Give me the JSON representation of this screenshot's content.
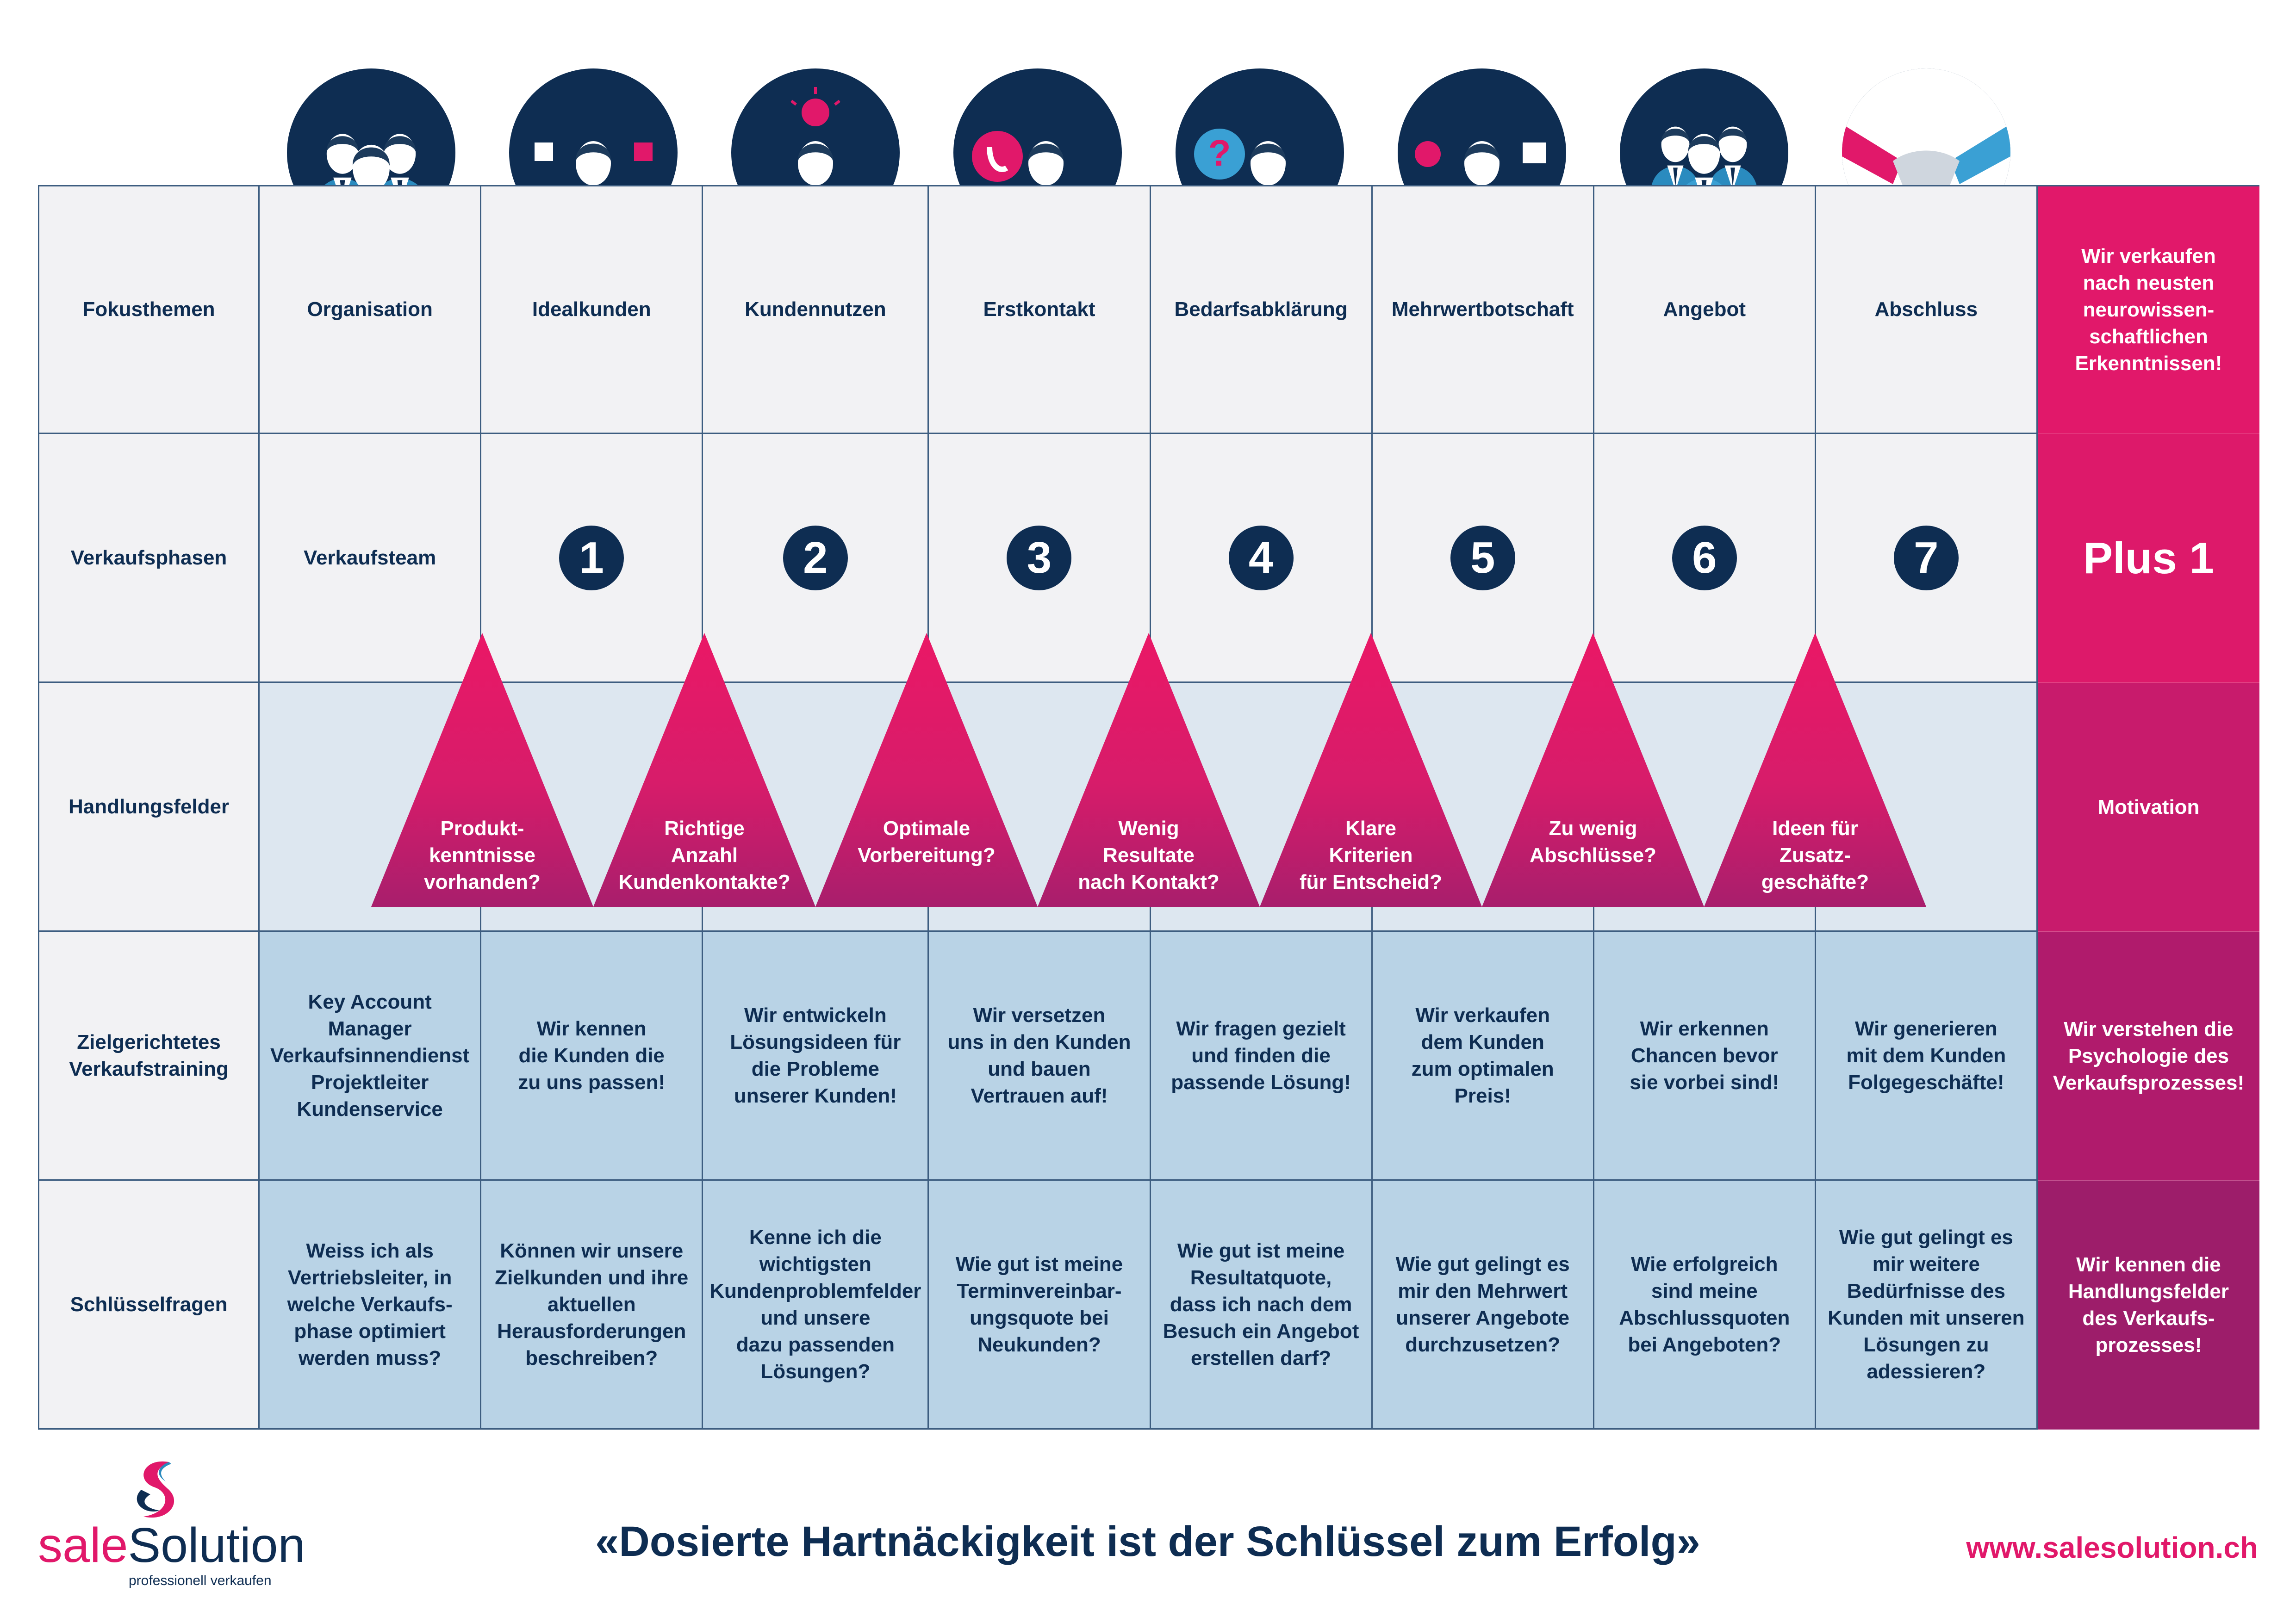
{
  "rows": [
    {
      "label": "Fokusthemen",
      "cells": [
        "Organisation",
        "Idealkunden",
        "Kundennutzen",
        "Erstkontakt",
        "Bedarfsabklärung",
        "Mehrwertbotschaft",
        "Angebot",
        "Abschluss"
      ],
      "plus": "Wir verkaufen\nnach neusten\nneurowissen-\nschaftlichen\nErkenntnissen!"
    },
    {
      "label": "Verkaufsphasen",
      "cells": [
        "Verkaufsteam",
        "1",
        "2",
        "3",
        "4",
        "5",
        "6",
        "7"
      ],
      "plus": "Plus 1"
    },
    {
      "label": "Handlungsfelder",
      "cells": [
        "",
        "",
        "",
        "",
        "",
        "",
        "",
        ""
      ],
      "plus": "Motivation"
    },
    {
      "label": "Zielgerichtetes\nVerkaufstraining",
      "cells": [
        "Key Account Manager\nVerkaufsinnendienst\nProjektleiter\nKundenservice",
        "Wir kennen\ndie Kunden die\nzu uns passen!",
        "Wir entwickeln\nLösungsideen für\ndie Probleme\nunserer Kunden!",
        "Wir versetzen\nuns in den Kunden\nund bauen\nVertrauen auf!",
        "Wir fragen gezielt\nund finden die\npassende Lösung!",
        "Wir verkaufen\ndem Kunden\nzum optimalen\nPreis!",
        "Wir erkennen\nChancen bevor\nsie vorbei sind!",
        "Wir generieren\nmit dem Kunden\nFolgegeschäfte!"
      ],
      "plus": "Wir verstehen die\nPsychologie des\nVerkaufsprozesses!"
    },
    {
      "label": "Schlüsselfragen",
      "cells": [
        "Weiss ich als\nVertriebsleiter, in\nwelche Verkaufs-\nphase optimiert\nwerden muss?",
        "Können wir unsere\nZielkunden und ihre\naktuellen\nHerausforderungen\nbeschreiben?",
        "Kenne ich die\nwichtigsten\nKundenproblemfelder\nund unsere\ndazu passenden\nLösungen?",
        "Wie gut ist meine\nTerminvereinbar-\nungsquote bei\nNeukunden?",
        "Wie gut ist meine\nResultatquote,\ndass ich nach dem\nBesuch ein Angebot\nerstellen darf?",
        "Wie gut gelingt es\nmir den Mehrwert\nunserer Angebote\ndurchzusetzen?",
        "Wie erfolgreich\nsind meine\nAbschlussquoten\nbei Angeboten?",
        "Wie gut gelingt es\nmir weitere\nBedürfnisse des\nKunden mit unseren\nLösungen zu\nadessieren?"
      ],
      "plus": "Wir kennen die\nHandlungsfelder\ndes Verkaufs-\nprozesses!"
    }
  ],
  "triangles": [
    "Produkt-\nkenntnisse\nvorhanden?",
    "Richtige\nAnzahl\nKundenkontakte?",
    "Optimale\nVorbereitung?",
    "Wenig\nResultate\nnach Kontakt?",
    "Klare\nKriterien\nfür Entscheid?",
    "Zu wenig\nAbschlüsse?",
    "Ideen für\nZusatz-\ngeschäfte?"
  ],
  "icons": [
    "team-icon",
    "puzzle-person-icon",
    "lightbulb-person-icon",
    "phone-person-icon",
    "question-person-icon",
    "money-gift-person-icon",
    "hand-team-icon",
    "handshake-icon"
  ],
  "footer": {
    "quote": "«Dosierte Hartnäckigkeit ist der Schlüssel zum Erfolg»",
    "url": "www.salesolution.ch",
    "logo_sale": "sale",
    "logo_solution": "Solution",
    "logo_tagline": "professionell verkaufen"
  },
  "colors": {
    "navy": "#0e2d52",
    "magenta": "#e1186a",
    "blue": "#2a8bbf",
    "light_blue": "#b9d3e6"
  }
}
